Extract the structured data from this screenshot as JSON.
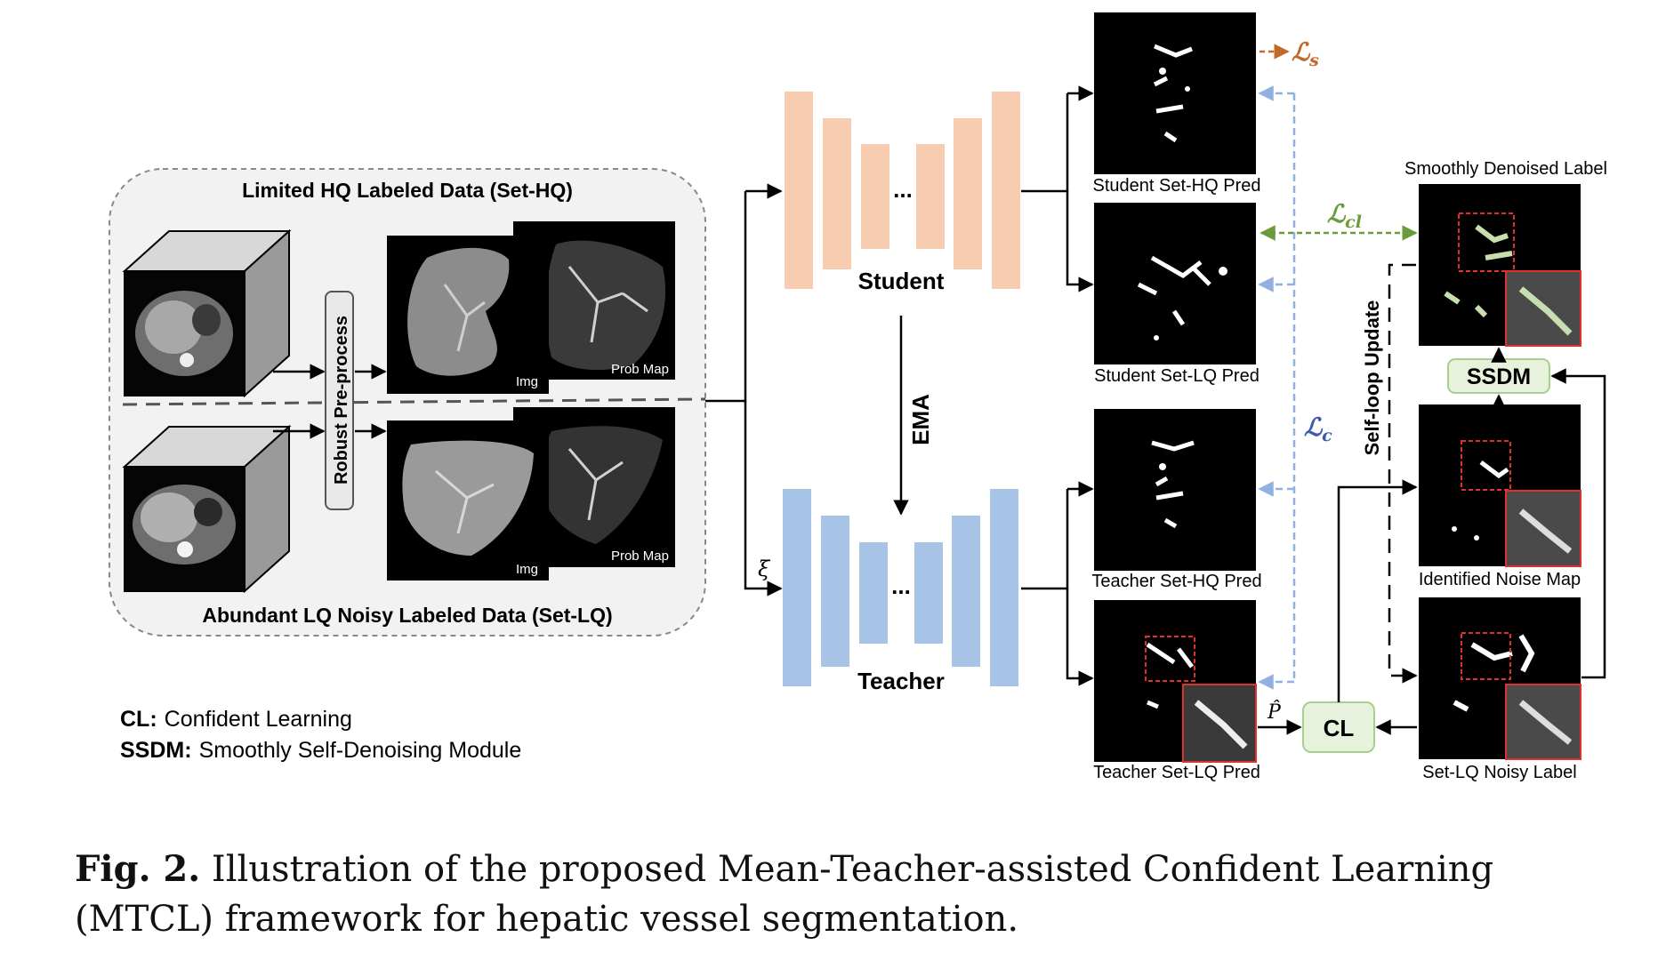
{
  "input_panel": {
    "hq_title": "Limited HQ Labeled Data (Set-HQ)",
    "lq_title": "Abundant LQ Noisy Labeled Data (Set-LQ)",
    "preprocess_label": "Robust Pre-process",
    "img_label_hq": "Img",
    "prob_label_hq": "Prob Map",
    "img_label_lq": "Img",
    "prob_label_lq": "Prob Map"
  },
  "networks": {
    "student_label": "Student",
    "teacher_label": "Teacher",
    "ema_label": "EMA",
    "ellipsis": "...",
    "xi_symbol": "ξ",
    "student_color": "#f7ccb0",
    "teacher_color": "#a7c4e6"
  },
  "outputs": {
    "student_hq": "Student Set-HQ Pred",
    "student_lq": "Student Set-LQ Pred",
    "teacher_hq": "Teacher Set-HQ Pred",
    "teacher_lq": "Teacher Set-LQ Pred",
    "smooth_label": "Smoothly Denoised Label",
    "noise_map": "Identified Noise Map",
    "noisy_label": "Set-LQ Noisy Label"
  },
  "losses": {
    "ls": "ℒ",
    "ls_sub": "s",
    "lcl": "ℒ",
    "lcl_sub": "cl",
    "lc": "ℒ",
    "lc_sub": "c",
    "ls_color": "#c0692a",
    "lcl_color": "#6a9a3c",
    "lc_color": "#3b5bab"
  },
  "modules": {
    "cl": "CL",
    "ssdm": "SSDM",
    "p_hat": "P̂",
    "self_loop": "Self-loop Update",
    "module_fill": "#e6f2dc",
    "module_stroke": "#a8cf8e"
  },
  "legend": {
    "cl_key": "CL:",
    "cl_value": "Confident Learning",
    "ssdm_key": "SSDM:",
    "ssdm_value": "Smoothly Self-Denoising Module"
  },
  "caption": {
    "prefix": "Fig. 2.",
    "text": "Illustration of the proposed Mean-Teacher-assisted Confident Learning (MTCL) framework for hepatic vessel segmentation."
  }
}
